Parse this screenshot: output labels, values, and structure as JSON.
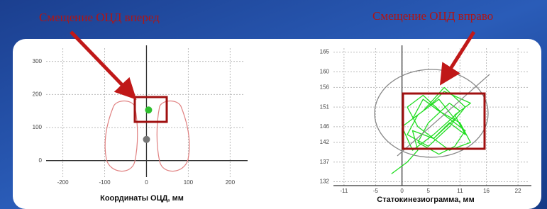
{
  "annotations": [
    "Смещение ОЦД вперед",
    "Смещение ОЦД вправо"
  ],
  "chart_data": [
    {
      "type": "scatter",
      "xlabel": "Координаты ОЦД, мм",
      "x": [
        5,
        0
      ],
      "values": [
        153,
        64
      ],
      "colors": [
        "#2fbf2f",
        "#777777"
      ],
      "xlim": [
        -240,
        235
      ],
      "ylim": [
        -50,
        340
      ],
      "xticks": [
        -200,
        -100,
        0,
        100,
        200
      ],
      "yticks": [
        0,
        100,
        200,
        300
      ],
      "grid": true
    },
    {
      "type": "line",
      "xlabel": "Статокинезиограмма, мм",
      "color": "#22dd22",
      "x": [
        -2,
        1,
        3,
        2,
        6,
        9,
        12,
        10,
        13,
        8,
        5,
        2,
        4,
        7,
        11,
        13,
        9,
        6,
        3,
        1,
        4,
        8,
        12,
        10,
        7,
        3,
        5,
        9,
        11,
        6,
        2,
        0,
        4,
        8,
        12,
        9,
        5,
        1,
        3,
        7,
        10,
        6
      ],
      "values": [
        134,
        137,
        140,
        145,
        143,
        147,
        144,
        149,
        152,
        155,
        151,
        148,
        153,
        150,
        147,
        142,
        140,
        143,
        146,
        151,
        154,
        149,
        145,
        141,
        139,
        142,
        147,
        152,
        150,
        144,
        140,
        146,
        150,
        156,
        151,
        146,
        141,
        144,
        149,
        153,
        148,
        143
      ],
      "xlim": [
        -13,
        24
      ],
      "ylim": [
        131,
        166
      ],
      "xticks": [
        -11,
        -5,
        0,
        5,
        11,
        16,
        22
      ],
      "yticks": [
        132,
        137,
        142,
        146,
        151,
        156,
        160,
        165
      ],
      "grid": true
    }
  ]
}
